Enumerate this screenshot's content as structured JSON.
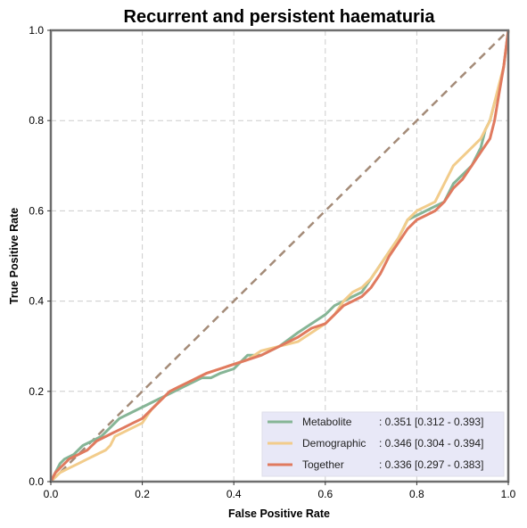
{
  "chart_data": {
    "type": "line",
    "title": "Recurrent and persistent haematuria",
    "xlabel": "False Positive Rate",
    "ylabel": "True Positive Rate",
    "xlim": [
      0,
      1
    ],
    "ylim": [
      0,
      1
    ],
    "xticks": [
      "0.0",
      "0.2",
      "0.4",
      "0.6",
      "0.8",
      "1.0"
    ],
    "yticks": [
      "0.0",
      "0.2",
      "0.4",
      "0.6",
      "0.8",
      "1.0"
    ],
    "grid": true,
    "legend_position": "bottom-right",
    "legend_bg": "#e8e8f7",
    "diagonal": {
      "color": "#a48b78",
      "style": "dashed"
    },
    "series": [
      {
        "name": "Metabolite",
        "label_suffix": ": 0.351 [0.312 - 0.393]",
        "color": "#86b596",
        "x": [
          0,
          0.01,
          0.02,
          0.03,
          0.05,
          0.07,
          0.09,
          0.11,
          0.13,
          0.15,
          0.17,
          0.19,
          0.21,
          0.23,
          0.25,
          0.27,
          0.29,
          0.31,
          0.33,
          0.35,
          0.37,
          0.4,
          0.43,
          0.46,
          0.5,
          0.54,
          0.57,
          0.6,
          0.62,
          0.64,
          0.66,
          0.68,
          0.7,
          0.72,
          0.74,
          0.76,
          0.78,
          0.8,
          0.82,
          0.84,
          0.86,
          0.88,
          0.9,
          0.92,
          0.93,
          0.94,
          0.95,
          0.96,
          0.97,
          0.98,
          0.99,
          1.0
        ],
        "y": [
          0,
          0.02,
          0.04,
          0.05,
          0.06,
          0.08,
          0.09,
          0.1,
          0.12,
          0.14,
          0.15,
          0.16,
          0.17,
          0.18,
          0.19,
          0.2,
          0.21,
          0.22,
          0.23,
          0.23,
          0.24,
          0.25,
          0.28,
          0.28,
          0.3,
          0.33,
          0.35,
          0.37,
          0.39,
          0.4,
          0.41,
          0.42,
          0.45,
          0.48,
          0.51,
          0.54,
          0.58,
          0.59,
          0.6,
          0.61,
          0.62,
          0.66,
          0.68,
          0.7,
          0.72,
          0.74,
          0.78,
          0.8,
          0.84,
          0.87,
          0.92,
          1.0
        ]
      },
      {
        "name": "Demographic",
        "label_suffix": ": 0.346 [0.304 - 0.394]",
        "color": "#f2cc8b",
        "x": [
          0,
          0.01,
          0.02,
          0.04,
          0.06,
          0.08,
          0.1,
          0.12,
          0.13,
          0.14,
          0.16,
          0.18,
          0.2,
          0.22,
          0.24,
          0.26,
          0.28,
          0.3,
          0.32,
          0.34,
          0.37,
          0.4,
          0.43,
          0.46,
          0.5,
          0.54,
          0.57,
          0.6,
          0.62,
          0.64,
          0.66,
          0.68,
          0.7,
          0.72,
          0.74,
          0.76,
          0.78,
          0.8,
          0.82,
          0.84,
          0.86,
          0.88,
          0.9,
          0.92,
          0.94,
          0.96,
          0.97,
          0.98,
          0.99,
          1.0
        ],
        "y": [
          0,
          0.01,
          0.02,
          0.03,
          0.04,
          0.05,
          0.06,
          0.07,
          0.08,
          0.1,
          0.11,
          0.12,
          0.13,
          0.16,
          0.18,
          0.2,
          0.21,
          0.22,
          0.23,
          0.24,
          0.25,
          0.26,
          0.27,
          0.29,
          0.3,
          0.31,
          0.33,
          0.35,
          0.37,
          0.4,
          0.42,
          0.43,
          0.45,
          0.48,
          0.51,
          0.54,
          0.58,
          0.6,
          0.61,
          0.62,
          0.66,
          0.7,
          0.72,
          0.74,
          0.76,
          0.8,
          0.84,
          0.88,
          0.92,
          1.0
        ]
      },
      {
        "name": "Together",
        "label_suffix": ": 0.336 [0.297 - 0.383]",
        "color": "#e07a5f",
        "x": [
          0,
          0.01,
          0.02,
          0.04,
          0.06,
          0.08,
          0.1,
          0.12,
          0.14,
          0.16,
          0.18,
          0.2,
          0.22,
          0.24,
          0.26,
          0.28,
          0.3,
          0.32,
          0.34,
          0.37,
          0.4,
          0.43,
          0.46,
          0.5,
          0.54,
          0.57,
          0.6,
          0.62,
          0.64,
          0.66,
          0.68,
          0.7,
          0.72,
          0.74,
          0.76,
          0.78,
          0.8,
          0.82,
          0.84,
          0.86,
          0.88,
          0.9,
          0.92,
          0.94,
          0.96,
          0.97,
          0.98,
          0.99,
          1.0
        ],
        "y": [
          0,
          0.02,
          0.03,
          0.05,
          0.06,
          0.07,
          0.09,
          0.1,
          0.11,
          0.12,
          0.13,
          0.14,
          0.16,
          0.18,
          0.2,
          0.21,
          0.22,
          0.23,
          0.24,
          0.25,
          0.26,
          0.27,
          0.28,
          0.3,
          0.32,
          0.34,
          0.35,
          0.37,
          0.39,
          0.4,
          0.41,
          0.43,
          0.46,
          0.5,
          0.53,
          0.56,
          0.58,
          0.59,
          0.6,
          0.62,
          0.65,
          0.67,
          0.7,
          0.73,
          0.76,
          0.8,
          0.86,
          0.92,
          1.0
        ]
      }
    ]
  }
}
